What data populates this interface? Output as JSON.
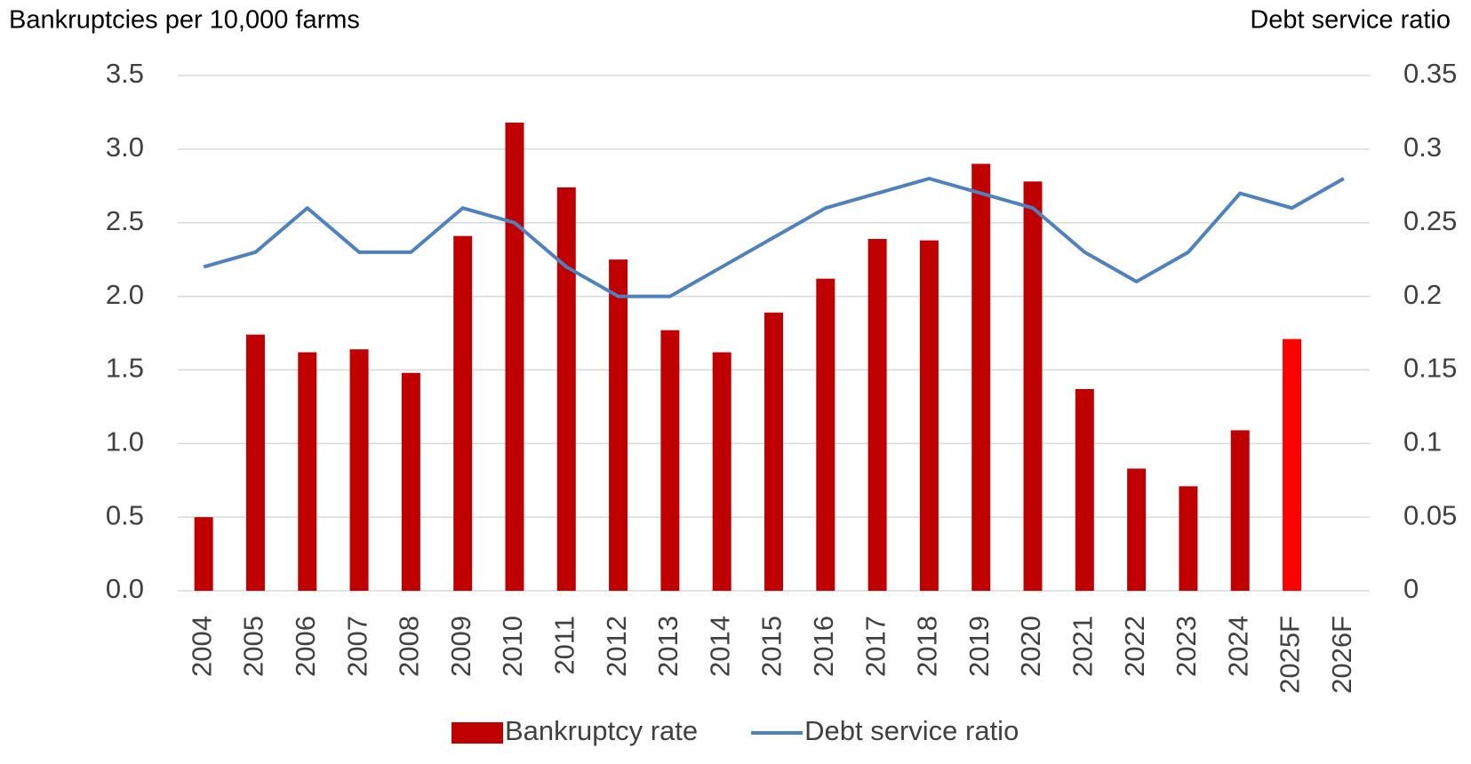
{
  "chart_data": {
    "type": "bar_line",
    "y_title": "Bankruptcies per 10,000 farms",
    "y2_title": "Debt service ratio",
    "categories": [
      "2004",
      "2005",
      "2006",
      "2007",
      "2008",
      "2009",
      "2010",
      "2011",
      "2012",
      "2013",
      "2014",
      "2015",
      "2016",
      "2017",
      "2018",
      "2019",
      "2020",
      "2021",
      "2022",
      "2023",
      "2024",
      "2025F",
      "2026F"
    ],
    "series": [
      {
        "name": "Bankruptcy rate",
        "type": "bar",
        "color": "#c00000",
        "colors": [
          "#c00000",
          "#c00000",
          "#c00000",
          "#c00000",
          "#c00000",
          "#c00000",
          "#c00000",
          "#c00000",
          "#c00000",
          "#c00000",
          "#c00000",
          "#c00000",
          "#c00000",
          "#c00000",
          "#c00000",
          "#c00000",
          "#c00000",
          "#c00000",
          "#c00000",
          "#c00000",
          "#c00000",
          "#ff0000",
          null
        ],
        "values": [
          0.5,
          1.74,
          1.62,
          1.64,
          1.48,
          2.41,
          3.18,
          2.74,
          2.25,
          1.77,
          1.62,
          1.89,
          2.12,
          2.39,
          2.38,
          2.9,
          2.78,
          1.37,
          0.83,
          0.71,
          1.09,
          1.71,
          null
        ]
      },
      {
        "name": "Debt service ratio",
        "type": "line",
        "axis": "y2",
        "color": "#4f81bd",
        "values": [
          0.22,
          0.23,
          0.26,
          0.23,
          0.23,
          0.26,
          0.25,
          0.22,
          0.2,
          0.2,
          0.22,
          0.24,
          0.26,
          0.27,
          0.28,
          0.27,
          0.26,
          0.23,
          0.21,
          0.23,
          0.27,
          0.26,
          0.28
        ]
      }
    ],
    "ylim": [
      0,
      3.5
    ],
    "yticks": [
      {
        "value": 0,
        "label": "0.0"
      },
      0.5,
      {
        "value": 1,
        "label": "1.0"
      },
      1.5,
      {
        "value": 2,
        "label": "2.0"
      },
      2.5,
      {
        "value": 3,
        "label": "3.0"
      },
      3.5
    ],
    "y2lim": [
      0,
      0.35
    ],
    "y2ticks": [
      0,
      0.05,
      0.1,
      0.15,
      0.2,
      0.25,
      0.3,
      0.35
    ],
    "grid": true,
    "legend": "bottom"
  }
}
